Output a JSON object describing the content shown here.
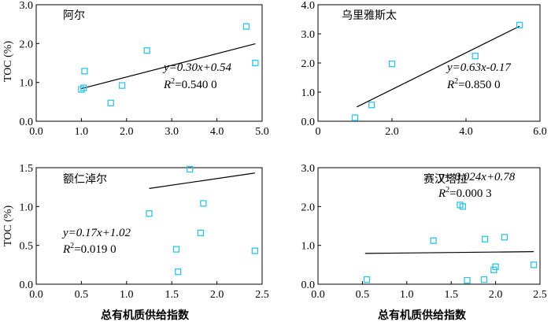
{
  "xlabel": "总有机质供给指数",
  "ylabel": "TOC (%)",
  "colors": {
    "point": "#31c3e6",
    "line": "#000000"
  },
  "chart_data": [
    {
      "type": "scatter",
      "title": "阿尔",
      "xlim": [
        0,
        5
      ],
      "ylim": [
        0,
        3
      ],
      "xticks": [
        "0.0",
        "1.0",
        "2.0",
        "3.0",
        "4.0",
        "5.0"
      ],
      "yticks": [
        "0.0",
        "1.0",
        "2.0",
        "3.0"
      ],
      "points": [
        [
          1.0,
          0.82
        ],
        [
          1.05,
          0.86
        ],
        [
          1.07,
          1.29
        ],
        [
          1.65,
          0.47
        ],
        [
          1.9,
          0.92
        ],
        [
          2.45,
          1.82
        ],
        [
          4.65,
          2.44
        ],
        [
          4.85,
          1.5
        ]
      ],
      "fit": {
        "slope": 0.3,
        "intercept": 0.54,
        "x": [
          1.0,
          4.85
        ]
      },
      "equation": "y=0.30x+0.54",
      "r2": "0.540 0"
    },
    {
      "type": "scatter",
      "title": "乌里雅斯太",
      "xlim": [
        0,
        6
      ],
      "ylim": [
        0,
        4
      ],
      "xticks": [
        "0",
        "2.0",
        "4.0",
        "6.0"
      ],
      "yticks": [
        "0.0",
        "1.0",
        "2.0",
        "3.0",
        "4.0"
      ],
      "points": [
        [
          1.0,
          0.12
        ],
        [
          1.45,
          0.56
        ],
        [
          2.0,
          1.97
        ],
        [
          4.25,
          2.24
        ],
        [
          5.45,
          3.3
        ]
      ],
      "fit": {
        "slope": 0.63,
        "intercept": -0.17,
        "x": [
          1.05,
          5.45
        ]
      },
      "equation": "y=0.63x-0.17",
      "r2": "0.850 0"
    },
    {
      "type": "scatter",
      "title": "额仁淖尔",
      "xlim": [
        0,
        2.5
      ],
      "ylim": [
        0,
        1.5
      ],
      "xticks": [
        "0.0",
        "0.5",
        "1.0",
        "1.5",
        "2.0",
        "2.5"
      ],
      "yticks": [
        "0.0",
        "0.5",
        "1.0",
        "1.5"
      ],
      "points": [
        [
          1.25,
          0.91
        ],
        [
          1.55,
          0.45
        ],
        [
          1.57,
          0.16
        ],
        [
          1.7,
          1.48
        ],
        [
          1.82,
          0.66
        ],
        [
          1.85,
          1.04
        ],
        [
          2.42,
          0.43
        ]
      ],
      "fit": {
        "slope": 0.17,
        "intercept": 1.02,
        "x": [
          1.25,
          2.42
        ]
      },
      "equation": "y=0.17x+1.02",
      "r2": "0.019 0"
    },
    {
      "type": "scatter",
      "title": "赛汉塔拉",
      "xlim": [
        0,
        2.5
      ],
      "ylim": [
        0,
        3
      ],
      "xticks": [
        "0.0",
        "0.5",
        "1.0",
        "1.5",
        "2.0",
        "2.5"
      ],
      "yticks": [
        "0.0",
        "1.0",
        "2.0",
        "3.0"
      ],
      "points": [
        [
          0.55,
          0.12
        ],
        [
          1.3,
          1.12
        ],
        [
          1.6,
          2.04
        ],
        [
          1.63,
          2.0
        ],
        [
          1.68,
          0.1
        ],
        [
          1.87,
          0.12
        ],
        [
          1.88,
          1.16
        ],
        [
          1.98,
          0.37
        ],
        [
          2.0,
          0.45
        ],
        [
          2.1,
          1.21
        ],
        [
          2.43,
          0.5
        ]
      ],
      "fit": {
        "slope": 0.024,
        "intercept": 0.78,
        "x": [
          0.53,
          2.43
        ]
      },
      "equation": "y= 0.024x+0.78",
      "r2": "0.000 3"
    }
  ]
}
